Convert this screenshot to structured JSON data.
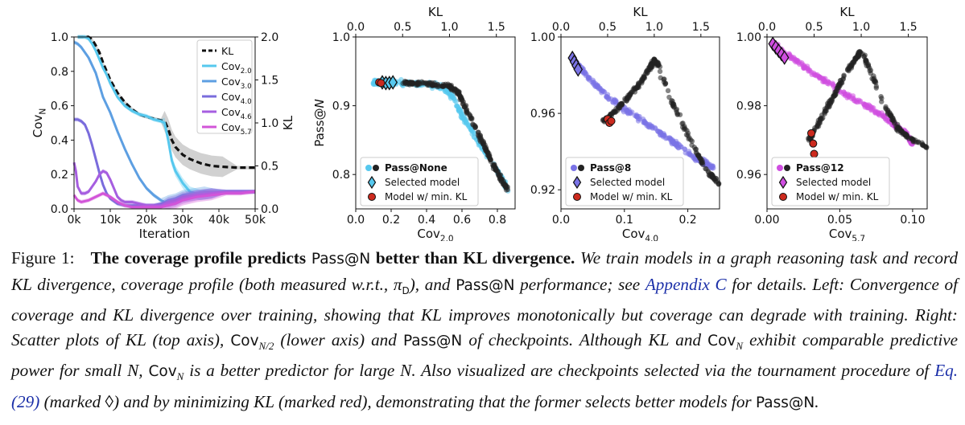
{
  "chart_data": [
    {
      "type": "line",
      "xlabel": "Iteration",
      "ylabel_left": "Cov_N",
      "ylabel_right": "KL",
      "x_ticks": [
        "0k",
        "10k",
        "20k",
        "30k",
        "40k",
        "50k"
      ],
      "y_left_ticks": [
        "0.0",
        "0.2",
        "0.4",
        "0.6",
        "0.8",
        "1.0"
      ],
      "y_right_ticks": [
        "0.0",
        "0.5",
        "1.0",
        "1.5",
        "2.0"
      ],
      "xlim": [
        0,
        50000
      ],
      "ylim_left": [
        0,
        1
      ],
      "ylim_right": [
        0,
        2
      ],
      "legend_position": "top-right",
      "series": [
        {
          "name": "KL",
          "axis": "right",
          "color": "#111111",
          "dashed": true,
          "x": [
            1000,
            2000,
            3000,
            4000,
            5000,
            6000,
            7000,
            8000,
            9000,
            10000,
            12000,
            14000,
            16000,
            18000,
            20000,
            22000,
            24000,
            25000,
            26000,
            27000,
            28000,
            30000,
            32000,
            35000,
            38000,
            41000,
            45000,
            50000
          ],
          "y": [
            2.0,
            2.0,
            2.0,
            2.0,
            1.97,
            1.9,
            1.82,
            1.7,
            1.6,
            1.5,
            1.35,
            1.24,
            1.16,
            1.1,
            1.07,
            1.05,
            1.03,
            1.02,
            0.93,
            0.8,
            0.72,
            0.63,
            0.58,
            0.53,
            0.5,
            0.49,
            0.48,
            0.48
          ]
        },
        {
          "name": "Cov2.0",
          "sub": "2.0",
          "axis": "left",
          "color": "#56c8ee",
          "x": [
            1000,
            2000,
            3000,
            4000,
            5000,
            6000,
            7000,
            8000,
            9000,
            10000,
            12000,
            14000,
            16000,
            18000,
            20000,
            22000,
            24000,
            25000,
            26000,
            27000,
            28000,
            30000,
            32000,
            35000,
            38000,
            41000,
            45000,
            50000
          ],
          "y": [
            1.0,
            1.0,
            1.0,
            0.99,
            0.96,
            0.92,
            0.87,
            0.82,
            0.78,
            0.73,
            0.65,
            0.6,
            0.57,
            0.55,
            0.54,
            0.52,
            0.51,
            0.5,
            0.4,
            0.28,
            0.22,
            0.15,
            0.1,
            0.08,
            0.09,
            0.1,
            0.1,
            0.1
          ]
        },
        {
          "name": "Cov3.0",
          "sub": "3.0",
          "axis": "left",
          "color": "#5d9fe2",
          "x": [
            0,
            1000,
            2000,
            4000,
            6000,
            8000,
            10000,
            12000,
            14000,
            16000,
            18000,
            20000,
            22000,
            24000,
            25000,
            26000,
            28000,
            30000,
            33000,
            36000,
            40000,
            45000,
            50000
          ],
          "y": [
            0.97,
            0.96,
            0.94,
            0.88,
            0.79,
            0.65,
            0.56,
            0.45,
            0.35,
            0.26,
            0.18,
            0.12,
            0.08,
            0.05,
            0.04,
            0.05,
            0.06,
            0.08,
            0.09,
            0.1,
            0.1,
            0.1,
            0.1
          ]
        },
        {
          "name": "Cov4.0",
          "sub": "4.0",
          "axis": "left",
          "color": "#7a6cdc",
          "x": [
            0,
            1000,
            2000,
            3000,
            4000,
            5000,
            6000,
            7000,
            8000,
            9000,
            10000,
            12000,
            14000,
            16000,
            18000,
            20000,
            22000,
            24000,
            26000,
            28000,
            30000,
            34000,
            38000,
            42000,
            46000,
            50000
          ],
          "y": [
            0.52,
            0.52,
            0.51,
            0.49,
            0.44,
            0.37,
            0.29,
            0.21,
            0.14,
            0.09,
            0.06,
            0.03,
            0.02,
            0.02,
            0.02,
            0.02,
            0.02,
            0.03,
            0.04,
            0.05,
            0.07,
            0.08,
            0.09,
            0.1,
            0.1,
            0.1
          ]
        },
        {
          "name": "Cov4.6",
          "sub": "4.6",
          "axis": "left",
          "color": "#a65ee0",
          "x": [
            0,
            500,
            1000,
            2000,
            3000,
            4000,
            5000,
            6000,
            7000,
            8000,
            9000,
            10000,
            11000,
            12000,
            13000,
            14000,
            16000,
            18000,
            20000,
            22000,
            24000,
            26000,
            28000,
            30000,
            34000,
            38000,
            42000,
            46000,
            50000
          ],
          "y": [
            0.27,
            0.22,
            0.13,
            0.09,
            0.09,
            0.1,
            0.13,
            0.16,
            0.2,
            0.22,
            0.21,
            0.17,
            0.12,
            0.07,
            0.05,
            0.04,
            0.04,
            0.03,
            0.02,
            0.02,
            0.02,
            0.03,
            0.04,
            0.06,
            0.08,
            0.09,
            0.1,
            0.1,
            0.1
          ]
        },
        {
          "name": "Cov5.7",
          "sub": "5.7",
          "axis": "left",
          "color": "#d255d8",
          "x": [
            0,
            1000,
            2000,
            4000,
            6000,
            8000,
            10000,
            12000,
            14000,
            16000,
            18000,
            20000,
            22000,
            24000,
            26000,
            28000,
            30000,
            34000,
            38000,
            42000,
            46000,
            50000
          ],
          "y": [
            0.08,
            0.05,
            0.04,
            0.05,
            0.07,
            0.09,
            0.07,
            0.04,
            0.02,
            0.01,
            0.01,
            0.01,
            0.01,
            0.01,
            0.02,
            0.03,
            0.05,
            0.07,
            0.08,
            0.09,
            0.09,
            0.1
          ]
        }
      ]
    },
    {
      "type": "scatter",
      "xlabel": "Cov",
      "xlabel_sub": "2.0",
      "top_xlabel": "KL",
      "ylabel": "Pass@N",
      "xlim": [
        0,
        0.9
      ],
      "ylim": [
        0.75,
        1.0
      ],
      "top_xlim": [
        0,
        1.7
      ],
      "x_ticks": [
        0.0,
        0.2,
        0.4,
        0.6,
        0.8
      ],
      "x_tick_labels": [
        "0.0",
        "0.2",
        "0.4",
        "0.6",
        "0.8"
      ],
      "y_ticks": [
        0.8,
        0.9,
        1.0
      ],
      "y_tick_labels": [
        "0.8",
        "0.9",
        "1.0"
      ],
      "top_ticks": [
        0.0,
        0.5,
        1.0,
        1.5
      ],
      "top_tick_labels": [
        "0.0",
        "0.5",
        "1.0",
        "1.5"
      ],
      "cov_color": "#56c8ee",
      "legend": {
        "title": "Pass@None",
        "selected": "Selected model",
        "minkl": "Model w/ min. KL",
        "position": "bottom-left"
      },
      "cov_points": [
        [
          0.1,
          0.934
        ],
        [
          0.2,
          0.934
        ],
        [
          0.3,
          0.932
        ],
        [
          0.4,
          0.931
        ],
        [
          0.5,
          0.926
        ],
        [
          0.55,
          0.912
        ],
        [
          0.6,
          0.885
        ],
        [
          0.7,
          0.845
        ],
        [
          0.8,
          0.805
        ],
        [
          0.86,
          0.778
        ]
      ],
      "kl_points": [
        [
          0.5,
          0.934
        ],
        [
          0.6,
          0.933
        ],
        [
          0.8,
          0.932
        ],
        [
          1.0,
          0.929
        ],
        [
          1.1,
          0.917
        ],
        [
          1.2,
          0.888
        ],
        [
          1.35,
          0.847
        ],
        [
          1.5,
          0.805
        ],
        [
          1.62,
          0.778
        ]
      ],
      "selected": [
        [
          0.15,
          0.934
        ],
        [
          0.17,
          0.933
        ],
        [
          0.19,
          0.933
        ],
        [
          0.21,
          0.934
        ]
      ],
      "minkl": [
        [
          0.25,
          0.934
        ],
        [
          0.27,
          0.933
        ]
      ]
    },
    {
      "type": "scatter",
      "xlabel": "Cov",
      "xlabel_sub": "4.0",
      "top_xlabel": "KL",
      "ylabel": "",
      "xlim": [
        0,
        0.25
      ],
      "ylim": [
        0.91,
        1.0
      ],
      "top_xlim": [
        0,
        1.7
      ],
      "x_ticks": [
        0.0,
        0.1,
        0.2
      ],
      "x_tick_labels": [
        "0.0",
        "0.1",
        "0.2"
      ],
      "y_ticks": [
        0.92,
        0.96,
        1.0
      ],
      "y_tick_labels": [
        "0.92",
        "0.96",
        "1.00"
      ],
      "top_ticks": [
        0.0,
        0.5,
        1.0,
        1.5
      ],
      "top_tick_labels": [
        "0.0",
        "0.5",
        "1.0",
        "1.5"
      ],
      "cov_color": "#7a73e6",
      "legend": {
        "title": "Pass@8",
        "selected": "Selected model",
        "minkl": "Model w/ min. KL",
        "position": "bottom-left"
      },
      "cov_points": [
        [
          0.02,
          0.988
        ],
        [
          0.04,
          0.98
        ],
        [
          0.07,
          0.97
        ],
        [
          0.1,
          0.962
        ],
        [
          0.13,
          0.956
        ],
        [
          0.16,
          0.949
        ],
        [
          0.19,
          0.942
        ],
        [
          0.22,
          0.935
        ],
        [
          0.24,
          0.932
        ]
      ],
      "kl_points": [
        [
          0.45,
          0.956
        ],
        [
          0.55,
          0.96
        ],
        [
          0.65,
          0.965
        ],
        [
          0.75,
          0.97
        ],
        [
          0.85,
          0.976
        ],
        [
          0.95,
          0.983
        ],
        [
          1.0,
          0.988
        ],
        [
          1.05,
          0.985
        ],
        [
          1.15,
          0.97
        ],
        [
          1.3,
          0.955
        ],
        [
          1.45,
          0.94
        ],
        [
          1.6,
          0.928
        ],
        [
          1.72,
          0.922
        ]
      ],
      "selected": [
        [
          0.018,
          0.989
        ],
        [
          0.021,
          0.987
        ],
        [
          0.024,
          0.985
        ],
        [
          0.027,
          0.983
        ]
      ],
      "minkl": [
        [
          0.5,
          0.957
        ],
        [
          0.52,
          0.955
        ],
        [
          0.54,
          0.956
        ]
      ]
    },
    {
      "type": "scatter",
      "xlabel": "Cov",
      "xlabel_sub": "5.7",
      "top_xlabel": "KL",
      "ylabel": "",
      "xlim": [
        0,
        0.11
      ],
      "ylim": [
        0.95,
        1.0
      ],
      "top_xlim": [
        0,
        1.7
      ],
      "x_ticks": [
        0.0,
        0.05,
        0.1
      ],
      "x_tick_labels": [
        "0.00",
        "0.05",
        "0.10"
      ],
      "y_ticks": [
        0.96,
        0.98,
        1.0
      ],
      "y_tick_labels": [
        "0.96",
        "0.98",
        "1.00"
      ],
      "top_ticks": [
        0.0,
        0.5,
        1.0,
        1.5
      ],
      "top_tick_labels": [
        "0.0",
        "0.5",
        "1.0",
        "1.5"
      ],
      "cov_color": "#cf4ee0",
      "legend": {
        "title": "Pass@12",
        "selected": "Selected model",
        "minkl": "Model w/ min. KL",
        "position": "bottom-left"
      },
      "cov_points": [
        [
          0.005,
          0.998
        ],
        [
          0.02,
          0.993
        ],
        [
          0.04,
          0.987
        ],
        [
          0.06,
          0.982
        ],
        [
          0.08,
          0.977
        ],
        [
          0.095,
          0.972
        ],
        [
          0.1,
          0.969
        ]
      ],
      "kl_points": [
        [
          0.45,
          0.97
        ],
        [
          0.55,
          0.975
        ],
        [
          0.65,
          0.98
        ],
        [
          0.75,
          0.985
        ],
        [
          0.85,
          0.99
        ],
        [
          0.95,
          0.994
        ],
        [
          1.0,
          0.996
        ],
        [
          1.1,
          0.99
        ],
        [
          1.25,
          0.98
        ],
        [
          1.4,
          0.973
        ],
        [
          1.55,
          0.97
        ],
        [
          1.7,
          0.968
        ]
      ],
      "selected": [
        [
          0.004,
          0.998
        ],
        [
          0.006,
          0.997
        ],
        [
          0.008,
          0.996
        ],
        [
          0.01,
          0.995
        ],
        [
          0.012,
          0.994
        ]
      ],
      "minkl": [
        [
          0.47,
          0.972
        ],
        [
          0.49,
          0.969
        ],
        [
          0.5,
          0.966
        ]
      ]
    }
  ],
  "caption": {
    "figure_label": "Figure 1:",
    "bold_1": "The coverage profile predicts",
    "passN_1": "Pass@N",
    "bold_2": "better than KL divergence.",
    "s1": "We train models in a graph reasoning task and record KL divergence, coverage profile (both measured w.r.t., π",
    "pi_sub": "D",
    "s2": "), and",
    "passN_2": "Pass@N",
    "s3": "performance; see",
    "appendix_link": "Appendix C",
    "s4": "for details. Left: Convergence of coverage and KL divergence over training, showing that KL improves monotonically but coverage can degrade with training. Right: Scatter plots of KL (top axis),",
    "cov_half": "Cov",
    "cov_half_sub": "N/2",
    "s5": "(lower axis) and",
    "passN_3": "Pass@N",
    "s6": "of checkpoints. Although KL and",
    "covN_1": "Cov",
    "covN_1_sub": "N",
    "s7": "exhibit comparable predictive power for small N,",
    "covN_2": "Cov",
    "covN_2_sub": "N",
    "s8": "is a better predictor for large N. Also visualized are checkpoints selected via the tournament procedure of",
    "eq_link": "Eq. (29)",
    "s9": "(marked ◊) and by minimizing KL (marked red), demonstrating that the former selects better models for",
    "passN_4": "Pass@N",
    "s10": "."
  }
}
